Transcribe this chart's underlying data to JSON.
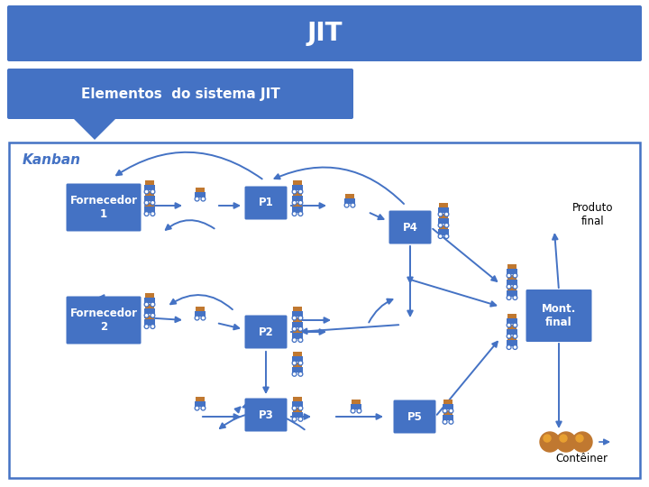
{
  "title": "JIT",
  "title_bg": "#4472C4",
  "title_color": "#FFFFFF",
  "subtitle": "Elementos  do sistema JIT",
  "subtitle_bg": "#4472C4",
  "subtitle_color": "#FFFFFF",
  "kanban_label": "Kanban",
  "kanban_color": "#4472C4",
  "box_color": "#4472C4",
  "box_text_color": "#FFFFFF",
  "arrow_color": "#4472C4",
  "cart_body_color": "#4472C4",
  "cart_load_color": "#C07830",
  "cart_wheel_color": "#FFFFFF",
  "container_color": "#C07830",
  "produto_final_text": "Produto\nfinal",
  "conteiner_text": "Contêiner",
  "figw": 7.2,
  "figh": 5.4
}
